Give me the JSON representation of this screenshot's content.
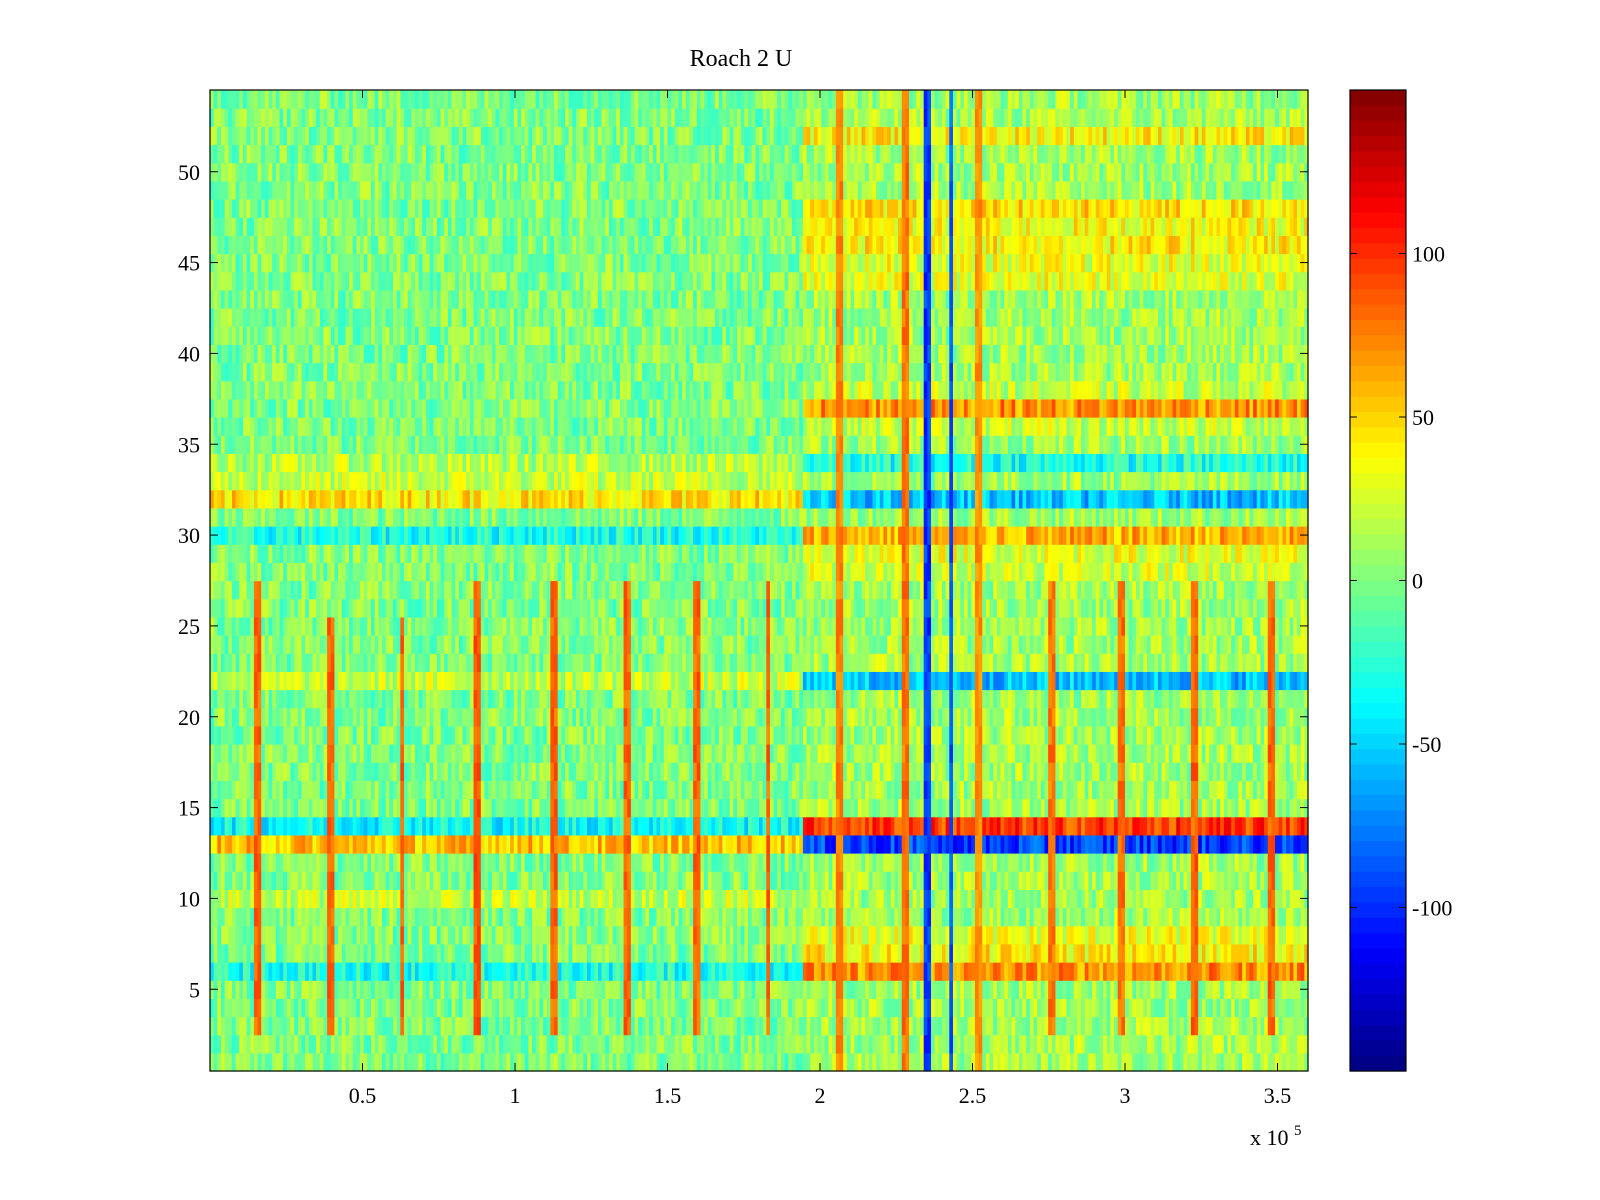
{
  "chart_data": {
    "type": "heatmap",
    "title": "Roach 2 U",
    "xlabel": "",
    "ylabel": "",
    "x_range": [
      0,
      360000
    ],
    "y_range": [
      0.5,
      54.5
    ],
    "rows": 54,
    "x_ticks": [
      {
        "value": 50000,
        "label": "0.5"
      },
      {
        "value": 100000,
        "label": "1"
      },
      {
        "value": 150000,
        "label": "1.5"
      },
      {
        "value": 200000,
        "label": "2"
      },
      {
        "value": 250000,
        "label": "2.5"
      },
      {
        "value": 300000,
        "label": "3"
      },
      {
        "value": 350000,
        "label": "3.5"
      }
    ],
    "x_exponent_label": "x 10",
    "x_exponent_power": "5",
    "y_ticks": [
      {
        "value": 5,
        "label": "5"
      },
      {
        "value": 10,
        "label": "10"
      },
      {
        "value": 15,
        "label": "15"
      },
      {
        "value": 20,
        "label": "20"
      },
      {
        "value": 25,
        "label": "25"
      },
      {
        "value": 30,
        "label": "30"
      },
      {
        "value": 35,
        "label": "35"
      },
      {
        "value": 40,
        "label": "40"
      },
      {
        "value": 45,
        "label": "45"
      },
      {
        "value": 50,
        "label": "50"
      }
    ],
    "colorbar": {
      "colormap": "jet",
      "range": [
        -150,
        150
      ],
      "ticks": [
        {
          "value": 100,
          "label": "100"
        },
        {
          "value": 50,
          "label": "50"
        },
        {
          "value": 0,
          "label": "0"
        },
        {
          "value": -50,
          "label": "-50"
        },
        {
          "value": -100,
          "label": "-100"
        }
      ]
    },
    "transition_x": 195000,
    "row_baseline_before": {
      "13": 55,
      "32": 45,
      "33": 20,
      "34": 15,
      "10": 20,
      "22": 20,
      "14": -35,
      "30": -30,
      "6": -30
    },
    "row_baseline_after": {
      "14": 95,
      "13": -95,
      "6": 70,
      "37": 70,
      "30": 60,
      "32": -55,
      "22": -55,
      "34": -30,
      "29": 30,
      "28": 25,
      "7": 40,
      "8": 30,
      "46": 40,
      "47": 35,
      "48": 45,
      "52": 40,
      "44": 30,
      "45": 30,
      "38": 20,
      "36": 20
    },
    "vertical_events": [
      {
        "x": 16000,
        "rows": [
          3,
          27
        ],
        "value": 95
      },
      {
        "x": 40000,
        "rows": [
          3,
          25
        ],
        "value": 95
      },
      {
        "x": 63000,
        "rows": [
          3,
          25
        ],
        "value": 95
      },
      {
        "x": 88000,
        "rows": [
          3,
          27
        ],
        "value": 100
      },
      {
        "x": 113000,
        "rows": [
          3,
          27
        ],
        "value": 95
      },
      {
        "x": 137000,
        "rows": [
          3,
          27
        ],
        "value": 95
      },
      {
        "x": 160000,
        "rows": [
          3,
          27
        ],
        "value": 95
      },
      {
        "x": 183000,
        "rows": [
          3,
          27
        ],
        "value": 95
      },
      {
        "x": 206000,
        "rows": [
          1,
          54
        ],
        "value": 85
      },
      {
        "x": 228000,
        "rows": [
          1,
          54
        ],
        "value": 90
      },
      {
        "x": 235000,
        "rows": [
          1,
          54
        ],
        "value": -110
      },
      {
        "x": 243000,
        "rows": [
          1,
          54
        ],
        "value": -100
      },
      {
        "x": 252000,
        "rows": [
          1,
          54
        ],
        "value": 80
      },
      {
        "x": 276000,
        "rows": [
          3,
          27
        ],
        "value": 90
      },
      {
        "x": 299000,
        "rows": [
          3,
          27
        ],
        "value": 90
      },
      {
        "x": 323000,
        "rows": [
          3,
          27
        ],
        "value": 95
      },
      {
        "x": 348000,
        "rows": [
          3,
          27
        ],
        "value": 95
      }
    ]
  }
}
